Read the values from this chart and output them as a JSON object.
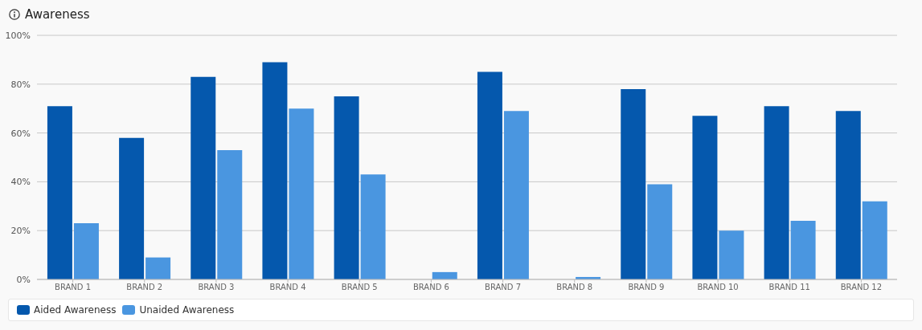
{
  "chart_data": {
    "type": "bar",
    "title": "Awareness",
    "categories": [
      "BRAND 1",
      "BRAND 2",
      "BRAND 3",
      "BRAND 4",
      "BRAND 5",
      "BRAND 6",
      "BRAND 7",
      "BRAND 8",
      "BRAND 9",
      "BRAND 10",
      "BRAND 11",
      "BRAND 12"
    ],
    "series": [
      {
        "name": "Aided Awareness",
        "color": "#0558ad",
        "values": [
          71,
          58,
          83,
          89,
          75,
          null,
          85,
          null,
          78,
          67,
          71,
          69
        ]
      },
      {
        "name": "Unaided Awareness",
        "color": "#4a96e0",
        "values": [
          23,
          9,
          53,
          70,
          43,
          3,
          69,
          1,
          39,
          20,
          24,
          32
        ]
      }
    ],
    "ylim": [
      0,
      100
    ],
    "yticks": [
      {
        "value": 0,
        "label": "0%"
      },
      {
        "value": 20,
        "label": "20%"
      },
      {
        "value": 40,
        "label": "40%"
      },
      {
        "value": 60,
        "label": "60%"
      },
      {
        "value": 80,
        "label": "80%"
      },
      {
        "value": 100,
        "label": "100%"
      }
    ],
    "grid": "y",
    "legend": "bottom"
  }
}
